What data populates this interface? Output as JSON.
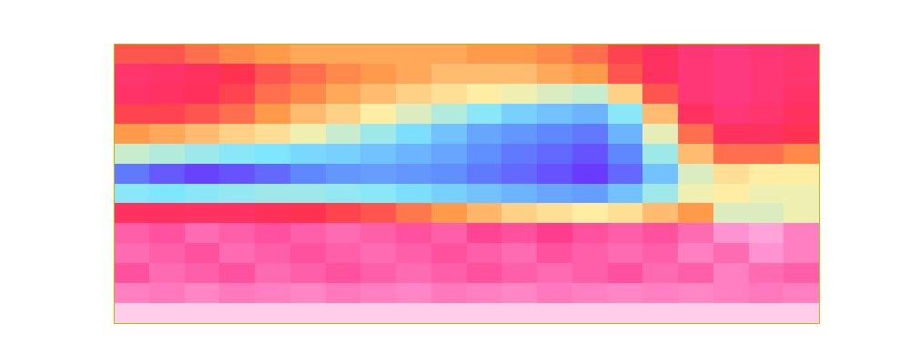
{
  "chart_data": {
    "type": "heatmap",
    "xlim": [
      0,
      20
    ],
    "ylim": [
      0,
      14
    ],
    "zlim": [
      0,
      1
    ],
    "tick_labels": false,
    "cells": [
      [
        0.42,
        0.42,
        0.45,
        0.48,
        0.5,
        0.52,
        0.52,
        0.52,
        0.52,
        0.52,
        0.5,
        0.5,
        0.48,
        0.45,
        0.4,
        0.35,
        0.3,
        0.28,
        0.3,
        0.32
      ],
      [
        0.32,
        0.33,
        0.35,
        0.38,
        0.42,
        0.45,
        0.48,
        0.5,
        0.52,
        0.55,
        0.55,
        0.55,
        0.52,
        0.5,
        0.42,
        0.35,
        0.3,
        0.28,
        0.3,
        0.32
      ],
      [
        0.33,
        0.34,
        0.36,
        0.4,
        0.45,
        0.48,
        0.52,
        0.55,
        0.58,
        0.6,
        0.62,
        0.64,
        0.66,
        0.68,
        0.58,
        0.42,
        0.3,
        0.28,
        0.3,
        0.33
      ],
      [
        0.4,
        0.4,
        0.42,
        0.45,
        0.5,
        0.55,
        0.58,
        0.62,
        0.66,
        0.7,
        0.74,
        0.78,
        0.8,
        0.82,
        0.74,
        0.55,
        0.35,
        0.3,
        0.32,
        0.35
      ],
      [
        0.5,
        0.52,
        0.55,
        0.58,
        0.6,
        0.64,
        0.68,
        0.72,
        0.76,
        0.8,
        0.84,
        0.86,
        0.88,
        0.9,
        0.82,
        0.65,
        0.45,
        0.35,
        0.35,
        0.38
      ],
      [
        0.68,
        0.7,
        0.72,
        0.74,
        0.75,
        0.77,
        0.78,
        0.8,
        0.82,
        0.84,
        0.87,
        0.9,
        0.92,
        0.95,
        0.88,
        0.72,
        0.55,
        0.45,
        0.45,
        0.48
      ],
      [
        0.9,
        0.94,
        0.97,
        0.95,
        0.92,
        0.88,
        0.86,
        0.85,
        0.86,
        0.87,
        0.9,
        0.92,
        0.95,
        0.98,
        0.92,
        0.8,
        0.66,
        0.6,
        0.62,
        0.62
      ],
      [
        0.74,
        0.75,
        0.74,
        0.73,
        0.72,
        0.72,
        0.73,
        0.74,
        0.76,
        0.78,
        0.8,
        0.82,
        0.84,
        0.85,
        0.8,
        0.72,
        0.64,
        0.62,
        0.64,
        0.64
      ],
      [
        0.35,
        0.35,
        0.34,
        0.34,
        0.36,
        0.38,
        0.4,
        0.42,
        0.46,
        0.5,
        0.54,
        0.58,
        0.6,
        0.62,
        0.6,
        0.55,
        0.5,
        0.66,
        0.66,
        0.64
      ],
      [
        0.2,
        0.22,
        0.18,
        0.2,
        0.22,
        0.2,
        0.18,
        0.2,
        0.22,
        0.2,
        0.24,
        0.22,
        0.25,
        0.22,
        0.2,
        0.22,
        0.18,
        0.12,
        0.1,
        0.15
      ],
      [
        0.18,
        0.2,
        0.22,
        0.18,
        0.2,
        0.22,
        0.2,
        0.18,
        0.2,
        0.22,
        0.2,
        0.18,
        0.22,
        0.2,
        0.18,
        0.2,
        0.15,
        0.18,
        0.12,
        0.15
      ],
      [
        0.22,
        0.18,
        0.2,
        0.22,
        0.18,
        0.2,
        0.22,
        0.2,
        0.18,
        0.2,
        0.22,
        0.2,
        0.18,
        0.2,
        0.22,
        0.18,
        0.2,
        0.15,
        0.18,
        0.2
      ],
      [
        0.15,
        0.16,
        0.14,
        0.16,
        0.15,
        0.14,
        0.16,
        0.15,
        0.14,
        0.16,
        0.15,
        0.14,
        0.16,
        0.15,
        0.14,
        0.15,
        0.14,
        0.15,
        0.16,
        0.15
      ],
      [
        0.05,
        0.05,
        0.05,
        0.05,
        0.05,
        0.05,
        0.05,
        0.05,
        0.05,
        0.05,
        0.05,
        0.05,
        0.05,
        0.05,
        0.05,
        0.05,
        0.05,
        0.05,
        0.05,
        0.05
      ]
    ]
  }
}
